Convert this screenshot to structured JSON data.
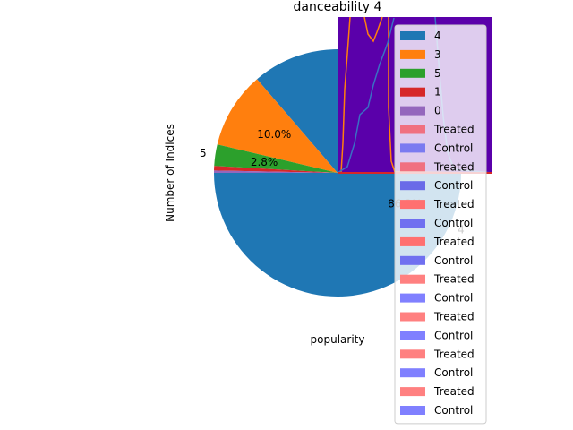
{
  "chart_data": {
    "type": "pie",
    "title": "danceability 4",
    "xlabel": "popularity",
    "ylabel": "Number of Indices",
    "slices": [
      {
        "label": "4",
        "value": 86.3,
        "pct_text": "86.3%",
        "color": "#1f77b4"
      },
      {
        "label": "3",
        "value": 10.0,
        "pct_text": "10.0%",
        "color": "#ff7f0e"
      },
      {
        "label": "5",
        "value": 2.8,
        "pct_text": "2.8%",
        "color": "#2ca02c"
      },
      {
        "label": "1",
        "value": 0.6,
        "pct_text": "",
        "color": "#d62728"
      },
      {
        "label": "0",
        "value": 0.3,
        "pct_text": "",
        "color": "#9467bd"
      }
    ],
    "visible_slice_labels": [
      "4",
      "5"
    ],
    "inset": {
      "background": "#5a00aa",
      "series": [
        {
          "name": "blue curve",
          "color": "#3a6fc4"
        },
        {
          "name": "orange curve",
          "color": "#ff7f0e"
        }
      ]
    },
    "legend": {
      "placement": "right",
      "entries": [
        {
          "label": "4",
          "color": "#1f77b4"
        },
        {
          "label": "3",
          "color": "#ff7f0e"
        },
        {
          "label": "5",
          "color": "#2ca02c"
        },
        {
          "label": "1",
          "color": "#d62728"
        },
        {
          "label": "0",
          "color": "#9467bd"
        },
        {
          "label": "Treated",
          "color": "#f07080"
        },
        {
          "label": "Control",
          "color": "#7a7af0"
        },
        {
          "label": "Treated",
          "color": "#f07080"
        },
        {
          "label": "Control",
          "color": "#6a6ae8"
        },
        {
          "label": "Treated",
          "color": "#ff7070"
        },
        {
          "label": "Control",
          "color": "#7070f0"
        },
        {
          "label": "Treated",
          "color": "#ff7070"
        },
        {
          "label": "Control",
          "color": "#7070f0"
        },
        {
          "label": "Treated",
          "color": "#ff8080"
        },
        {
          "label": "Control",
          "color": "#8080ff"
        },
        {
          "label": "Treated",
          "color": "#ff8080"
        },
        {
          "label": "Control",
          "color": "#8080ff"
        },
        {
          "label": "Treated",
          "color": "#ff8080"
        },
        {
          "label": "Control",
          "color": "#8080ff"
        },
        {
          "label": "Treated",
          "color": "#ff8080"
        },
        {
          "label": "Control",
          "color": "#8080ff"
        }
      ]
    }
  }
}
